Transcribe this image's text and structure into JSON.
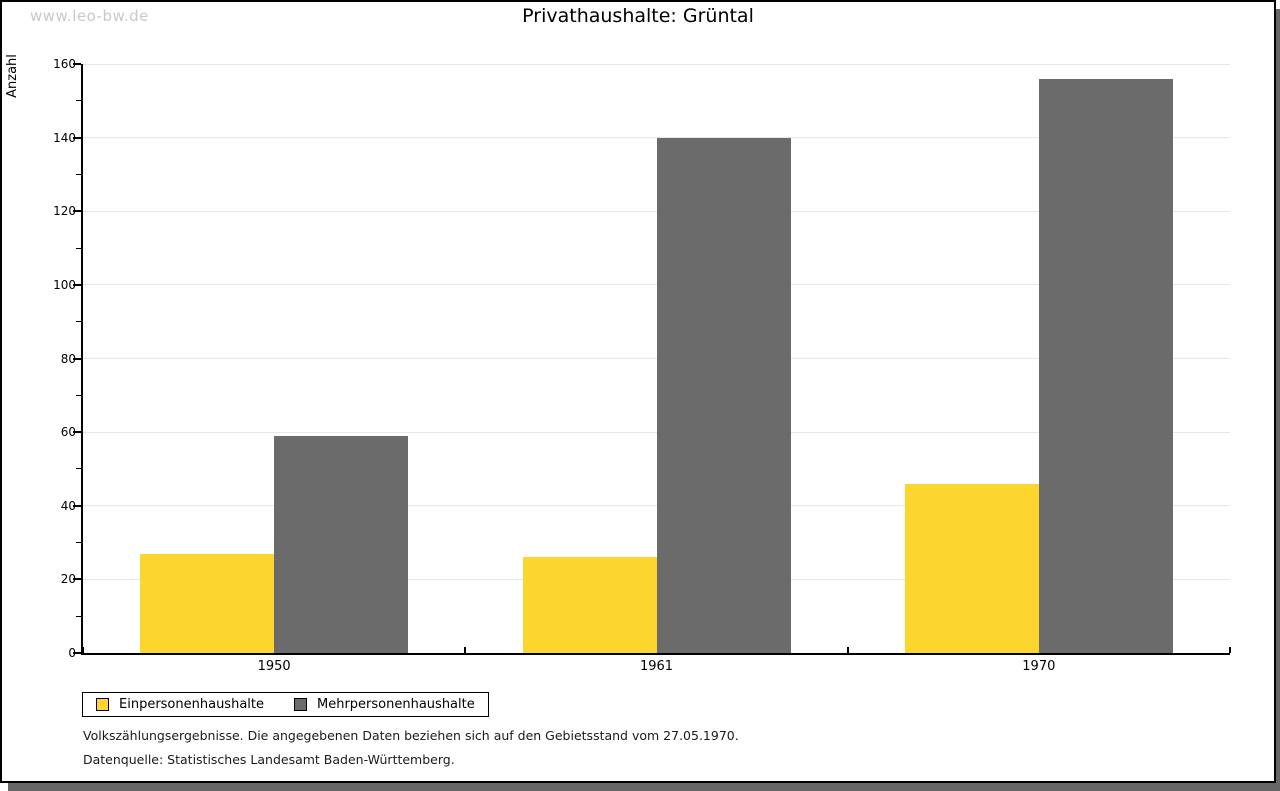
{
  "watermark": "www.leo-bw.de",
  "chart_data": {
    "type": "bar",
    "title": "Privathaushalte: Grüntal",
    "xlabel": "",
    "ylabel": "Anzahl",
    "categories": [
      "1950",
      "1961",
      "1970"
    ],
    "series": [
      {
        "name": "Einpersonenhaushalte",
        "color": "#fcd52e",
        "values": [
          27,
          26,
          46
        ]
      },
      {
        "name": "Mehrpersonenhaushalte",
        "color": "#6b6b6b",
        "values": [
          59,
          140,
          156
        ]
      }
    ],
    "ylim": [
      0,
      160
    ],
    "ytick_step": 20,
    "yminor_step": 10,
    "grid": true,
    "gridline_color": "#e6e6e6",
    "axis_color": "#000000",
    "legend_position": "bottom-left"
  },
  "footer": {
    "line1": "Volkszählungsergebnisse. Die angegebenen Daten beziehen sich auf den Gebietsstand vom 27.05.1970.",
    "line2": "Datenquelle: Statistisches Landesamt Baden-Württemberg."
  }
}
